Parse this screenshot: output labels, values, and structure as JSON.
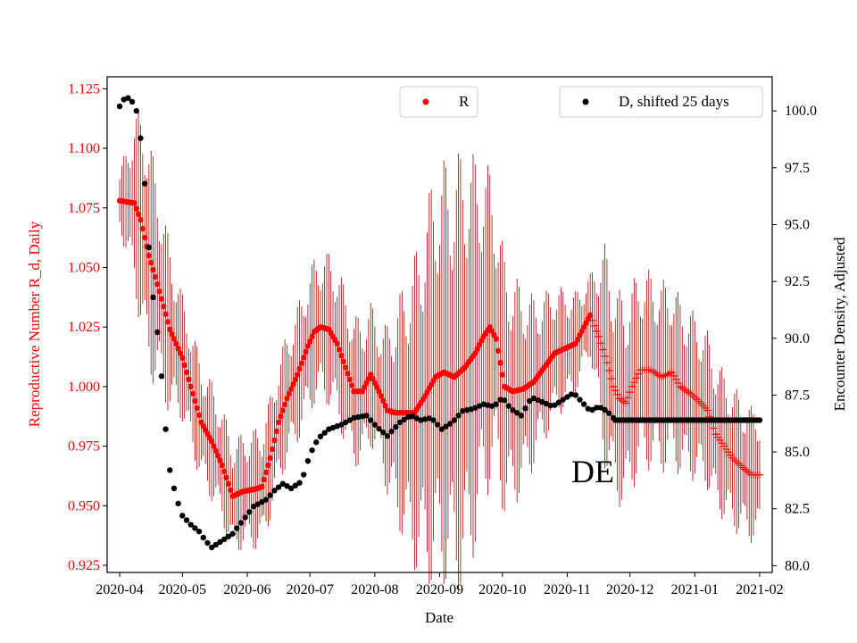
{
  "chart_data": {
    "type": "scatter",
    "xlabel": "Date",
    "ylabel_left": "Reproductive Number R_d, Daily",
    "ylabel_right": "Encounter Density, Adjusted",
    "annotation": "DE",
    "xlim": [
      "2020-03-26",
      "2021-02-07"
    ],
    "ylim_left": [
      0.922,
      1.13
    ],
    "ylim_right": [
      79.7,
      101.5
    ],
    "x_ticks": [
      "2020-04",
      "2020-05",
      "2020-06",
      "2020-07",
      "2020-08",
      "2020-09",
      "2020-10",
      "2020-11",
      "2020-12",
      "2021-01",
      "2021-02"
    ],
    "y_ticks_left": [
      "0.925",
      "0.950",
      "0.975",
      "1.000",
      "1.025",
      "1.050",
      "1.075",
      "1.100",
      "1.125"
    ],
    "y_ticks_right": [
      "80.0",
      "82.5",
      "85.0",
      "87.5",
      "90.0",
      "92.5",
      "95.0",
      "97.5",
      "100.0"
    ],
    "legend": [
      {
        "label": "R",
        "color": "#ff0000",
        "placement": "top-center"
      },
      {
        "label": "D, shifted 25 days",
        "color": "#000000",
        "placement": "top-right"
      }
    ],
    "colors": {
      "r_series": "#ff0000",
      "r_errorbar": "#aa0000",
      "d_series": "#000000",
      "left_axis_text": "#ff0000"
    },
    "series": [
      {
        "name": "R",
        "axis": "left",
        "marker_observed": "dot",
        "marker_forecast": "plus",
        "forecast_start": "2020-11-13",
        "error_half_width": [
          [
            0,
            0.009
          ],
          [
            12,
            0.04
          ],
          [
            30,
            0.02
          ],
          [
            55,
            0.018
          ],
          [
            75,
            0.02
          ],
          [
            105,
            0.025
          ],
          [
            125,
            0.022
          ],
          [
            150,
            0.065
          ],
          [
            165,
            0.07
          ],
          [
            180,
            0.045
          ],
          [
            200,
            0.025
          ],
          [
            225,
            0.013
          ],
          [
            232,
            0.035
          ],
          [
            260,
            0.03
          ],
          [
            280,
            0.025
          ],
          [
            310,
            0.02
          ]
        ],
        "points": [
          [
            "2020-04-01",
            1.078
          ],
          [
            "2020-04-08",
            1.077
          ],
          [
            "2020-04-11",
            1.07
          ],
          [
            "2020-04-15",
            1.055
          ],
          [
            "2020-04-20",
            1.04
          ],
          [
            "2020-04-25",
            1.024
          ],
          [
            "2020-05-01",
            1.012
          ],
          [
            "2020-05-05",
            1.0
          ],
          [
            "2020-05-10",
            0.985
          ],
          [
            "2020-05-15",
            0.977
          ],
          [
            "2020-05-20",
            0.967
          ],
          [
            "2020-05-25",
            0.954
          ],
          [
            "2020-05-30",
            0.956
          ],
          [
            "2020-06-05",
            0.957
          ],
          [
            "2020-06-08",
            0.958
          ],
          [
            "2020-06-12",
            0.97
          ],
          [
            "2020-06-16",
            0.985
          ],
          [
            "2020-06-20",
            0.995
          ],
          [
            "2020-06-25",
            1.005
          ],
          [
            "2020-06-30",
            1.017
          ],
          [
            "2020-07-03",
            1.023
          ],
          [
            "2020-07-06",
            1.025
          ],
          [
            "2020-07-10",
            1.024
          ],
          [
            "2020-07-14",
            1.018
          ],
          [
            "2020-07-18",
            1.008
          ],
          [
            "2020-07-22",
            0.998
          ],
          [
            "2020-07-26",
            0.998
          ],
          [
            "2020-07-30",
            1.005
          ],
          [
            "2020-08-03",
            0.998
          ],
          [
            "2020-08-07",
            0.99
          ],
          [
            "2020-08-11",
            0.989
          ],
          [
            "2020-08-15",
            0.989
          ],
          [
            "2020-08-20",
            0.989
          ],
          [
            "2020-08-25",
            0.996
          ],
          [
            "2020-08-30",
            1.004
          ],
          [
            "2020-09-03",
            1.006
          ],
          [
            "2020-09-08",
            1.004
          ],
          [
            "2020-09-13",
            1.008
          ],
          [
            "2020-09-18",
            1.014
          ],
          [
            "2020-09-22",
            1.021
          ],
          [
            "2020-09-25",
            1.025
          ],
          [
            "2020-09-28",
            1.02
          ],
          [
            "2020-10-02",
            1.0
          ],
          [
            "2020-10-06",
            0.998
          ],
          [
            "2020-10-11",
            0.999
          ],
          [
            "2020-10-16",
            1.002
          ],
          [
            "2020-10-21",
            1.008
          ],
          [
            "2020-10-26",
            1.014
          ],
          [
            "2020-10-31",
            1.016
          ],
          [
            "2020-11-05",
            1.018
          ],
          [
            "2020-11-09",
            1.025
          ],
          [
            "2020-11-12",
            1.03
          ],
          [
            "2020-11-16",
            1.021
          ],
          [
            "2020-11-20",
            1.01
          ],
          [
            "2020-11-23",
            1.0
          ],
          [
            "2020-11-26",
            0.995
          ],
          [
            "2020-11-29",
            0.993
          ],
          [
            "2020-12-02",
            1.0
          ],
          [
            "2020-12-06",
            1.007
          ],
          [
            "2020-12-11",
            1.007
          ],
          [
            "2020-12-16",
            1.004
          ],
          [
            "2020-12-21",
            1.006
          ],
          [
            "2020-12-25",
            1.0
          ],
          [
            "2020-12-30",
            0.997
          ],
          [
            "2021-01-04",
            0.993
          ],
          [
            "2021-01-07",
            0.99
          ],
          [
            "2021-01-11",
            0.98
          ],
          [
            "2021-01-15",
            0.975
          ],
          [
            "2021-01-19",
            0.97
          ],
          [
            "2021-01-24",
            0.966
          ],
          [
            "2021-01-28",
            0.963
          ],
          [
            "2021-02-01",
            0.963
          ]
        ]
      },
      {
        "name": "D, shifted 25 days",
        "axis": "right",
        "points": [
          [
            "2020-04-01",
            100.2
          ],
          [
            "2020-04-03",
            100.5
          ],
          [
            "2020-04-06",
            100.6
          ],
          [
            "2020-04-09",
            100.0
          ],
          [
            "2020-04-11",
            98.8
          ],
          [
            "2020-04-13",
            96.8
          ],
          [
            "2020-04-15",
            94.0
          ],
          [
            "2020-04-17",
            91.8
          ],
          [
            "2020-04-20",
            89.5
          ],
          [
            "2020-04-23",
            86.0
          ],
          [
            "2020-04-25",
            84.2
          ],
          [
            "2020-04-28",
            83.0
          ],
          [
            "2020-05-01",
            82.2
          ],
          [
            "2020-05-05",
            81.8
          ],
          [
            "2020-05-09",
            81.5
          ],
          [
            "2020-05-12",
            81.1
          ],
          [
            "2020-05-15",
            80.8
          ],
          [
            "2020-05-20",
            81.1
          ],
          [
            "2020-05-25",
            81.4
          ],
          [
            "2020-05-30",
            82.0
          ],
          [
            "2020-06-04",
            82.6
          ],
          [
            "2020-06-10",
            82.9
          ],
          [
            "2020-06-14",
            83.3
          ],
          [
            "2020-06-18",
            83.6
          ],
          [
            "2020-06-22",
            83.4
          ],
          [
            "2020-06-27",
            83.7
          ],
          [
            "2020-07-01",
            84.9
          ],
          [
            "2020-07-05",
            85.6
          ],
          [
            "2020-07-10",
            86.0
          ],
          [
            "2020-07-16",
            86.2
          ],
          [
            "2020-07-22",
            86.5
          ],
          [
            "2020-07-28",
            86.6
          ],
          [
            "2020-08-02",
            86.1
          ],
          [
            "2020-08-07",
            85.7
          ],
          [
            "2020-08-13",
            86.3
          ],
          [
            "2020-08-18",
            86.6
          ],
          [
            "2020-08-23",
            86.4
          ],
          [
            "2020-08-28",
            86.5
          ],
          [
            "2020-09-02",
            86.0
          ],
          [
            "2020-09-07",
            86.3
          ],
          [
            "2020-09-12",
            86.8
          ],
          [
            "2020-09-17",
            86.9
          ],
          [
            "2020-09-22",
            87.1
          ],
          [
            "2020-09-27",
            87.0
          ],
          [
            "2020-10-01",
            87.4
          ],
          [
            "2020-10-05",
            86.9
          ],
          [
            "2020-10-10",
            86.6
          ],
          [
            "2020-10-15",
            87.4
          ],
          [
            "2020-10-20",
            87.2
          ],
          [
            "2020-10-25",
            87.0
          ],
          [
            "2020-10-30",
            87.3
          ],
          [
            "2020-11-04",
            87.6
          ],
          [
            "2020-11-08",
            87.2
          ],
          [
            "2020-11-12",
            86.8
          ],
          [
            "2020-11-16",
            87.0
          ],
          [
            "2020-11-20",
            86.8
          ],
          [
            "2020-11-24",
            86.4
          ],
          [
            "2020-12-10",
            86.4
          ],
          [
            "2020-12-31",
            86.4
          ],
          [
            "2021-02-01",
            86.4
          ]
        ]
      }
    ]
  }
}
